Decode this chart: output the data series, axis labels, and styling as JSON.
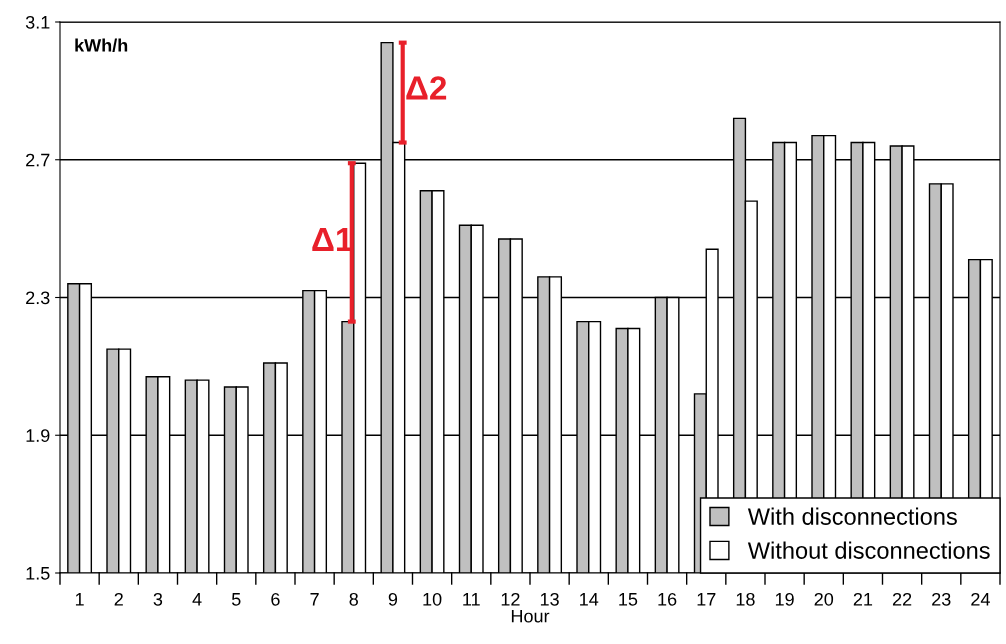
{
  "chart_data": {
    "type": "bar",
    "ylabel": "kWh/h",
    "xlabel": "Hour",
    "categories": [
      "1",
      "2",
      "3",
      "4",
      "5",
      "6",
      "7",
      "8",
      "9",
      "10",
      "11",
      "12",
      "13",
      "14",
      "15",
      "16",
      "17",
      "18",
      "19",
      "20",
      "21",
      "22",
      "23",
      "24"
    ],
    "series": [
      {
        "name": "With disconnections",
        "color": "#c0c0c0",
        "values": [
          2.34,
          2.15,
          2.07,
          2.06,
          2.04,
          2.11,
          2.32,
          2.23,
          3.04,
          2.61,
          2.51,
          2.47,
          2.36,
          2.23,
          2.21,
          2.3,
          2.02,
          2.82,
          2.75,
          2.77,
          2.75,
          2.74,
          2.63,
          2.41
        ]
      },
      {
        "name": "Without disconnections",
        "color": "#ffffff",
        "values": [
          2.34,
          2.15,
          2.07,
          2.06,
          2.04,
          2.11,
          2.32,
          2.69,
          2.75,
          2.61,
          2.51,
          2.47,
          2.36,
          2.23,
          2.21,
          2.3,
          2.44,
          2.58,
          2.75,
          2.77,
          2.75,
          2.74,
          2.63,
          2.41
        ]
      }
    ],
    "ylim": [
      1.5,
      3.1
    ],
    "yticks": [
      1.5,
      1.9,
      2.3,
      2.7,
      3.1
    ],
    "grid": "y",
    "legend": "bottom right",
    "annotations": [
      {
        "text": "Δ1",
        "x": "8",
        "y": 2.46
      },
      {
        "text": "Δ2",
        "x": "9",
        "y": 2.9
      }
    ]
  }
}
